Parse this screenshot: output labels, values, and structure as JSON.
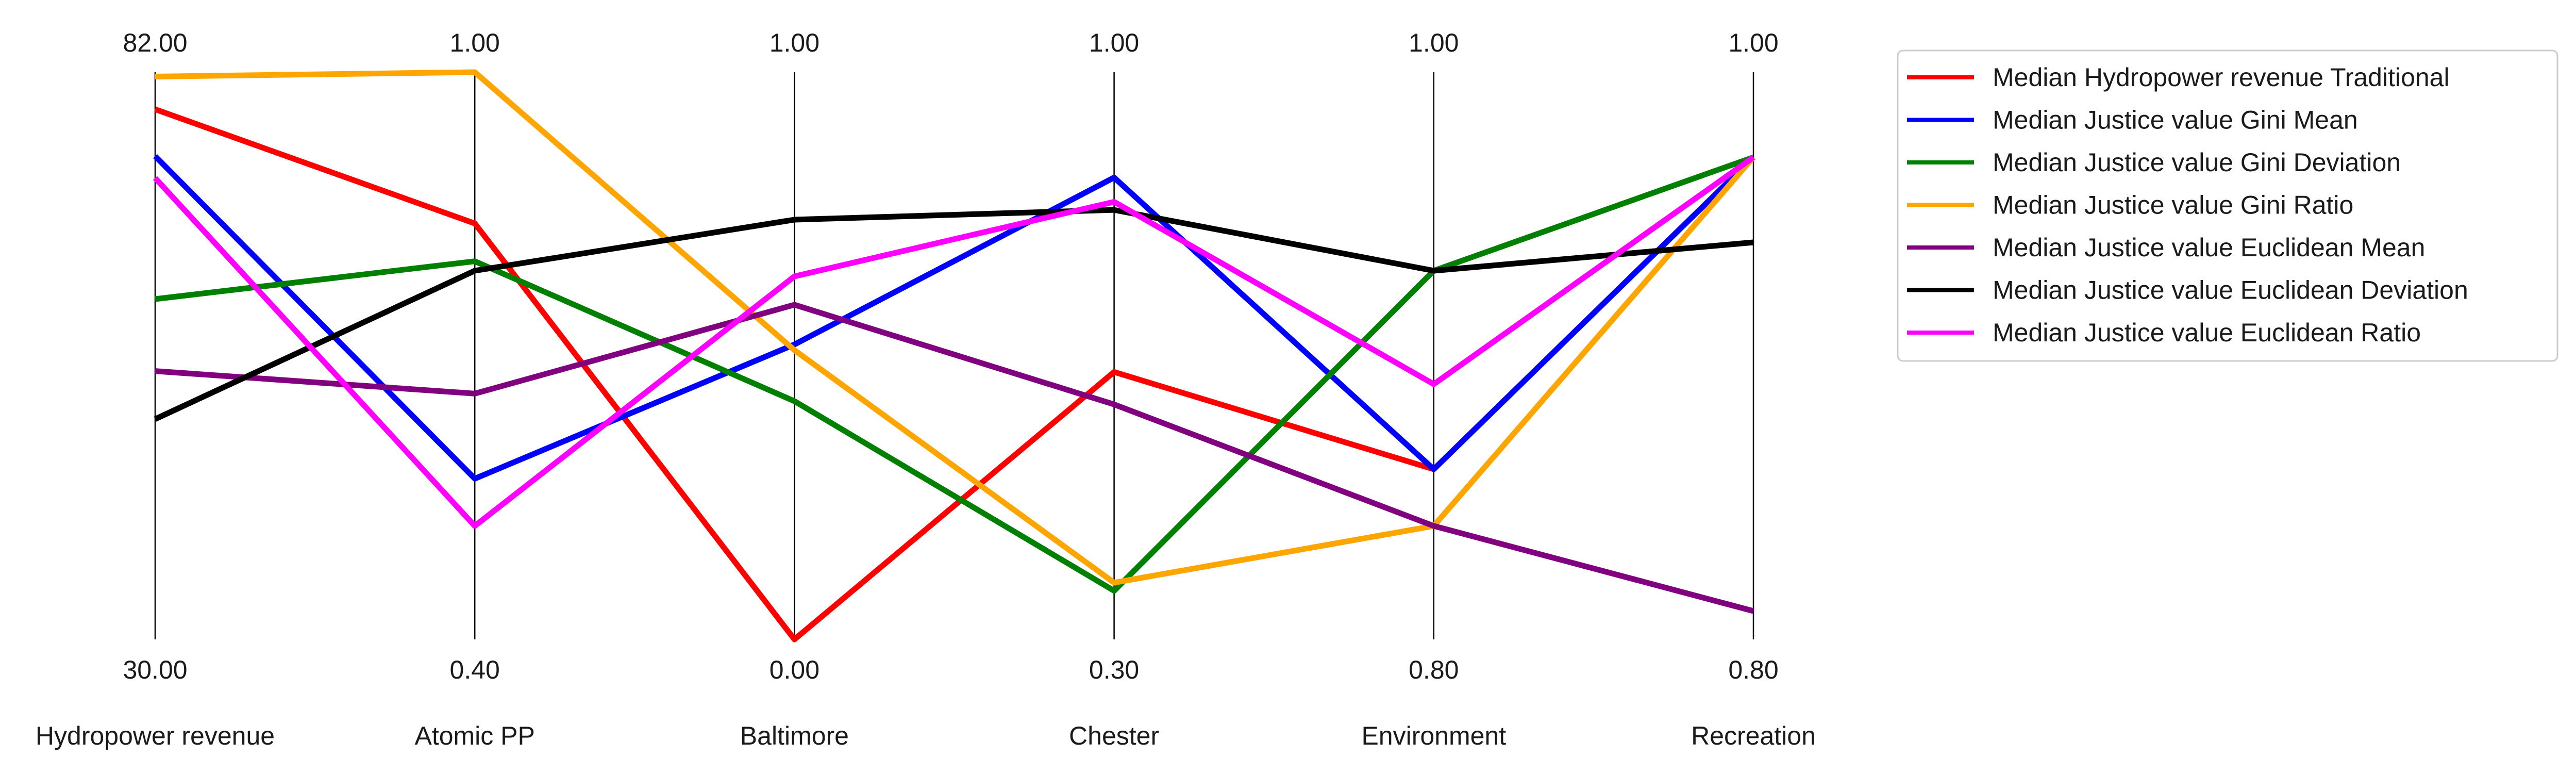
{
  "chart_data": {
    "type": "line",
    "subtype": "parallel-coordinates",
    "axes": [
      {
        "name": "Hydropower revenue",
        "min": 30.0,
        "max": 82.0,
        "min_label": "30.00",
        "max_label": "82.00"
      },
      {
        "name": "Atomic PP",
        "min": 0.4,
        "max": 1.0,
        "min_label": "0.40",
        "max_label": "1.00"
      },
      {
        "name": "Baltimore",
        "min": 0.0,
        "max": 1.0,
        "min_label": "0.00",
        "max_label": "1.00"
      },
      {
        "name": "Chester",
        "min": 0.3,
        "max": 1.0,
        "min_label": "0.30",
        "max_label": "1.00"
      },
      {
        "name": "Environment",
        "min": 0.8,
        "max": 1.0,
        "min_label": "0.80",
        "max_label": "1.00"
      },
      {
        "name": "Recreation",
        "min": 0.8,
        "max": 1.0,
        "min_label": "0.80",
        "max_label": "1.00"
      }
    ],
    "series": [
      {
        "name": "Median Hydropower revenue Traditional",
        "color": "#ff0000",
        "values": [
          78.6,
          0.84,
          0.0,
          0.63,
          0.86,
          0.97
        ]
      },
      {
        "name": "Median Justice value Gini Mean",
        "color": "#0000ff",
        "values": [
          74.3,
          0.57,
          0.52,
          0.87,
          0.86,
          0.97
        ]
      },
      {
        "name": "Median Justice value Gini Deviation",
        "color": "#008000",
        "values": [
          61.2,
          0.8,
          0.42,
          0.36,
          0.93,
          0.97
        ]
      },
      {
        "name": "Median Justice value Gini Ratio",
        "color": "#ffa500",
        "values": [
          81.6,
          1.0,
          0.51,
          0.37,
          0.84,
          0.97
        ]
      },
      {
        "name": "Median Justice value Euclidean Mean",
        "color": "#800080",
        "values": [
          54.6,
          0.66,
          0.59,
          0.59,
          0.84,
          0.81
        ]
      },
      {
        "name": "Median Justice value Euclidean Deviation",
        "color": "#000000",
        "values": [
          50.2,
          0.79,
          0.74,
          0.83,
          0.93,
          0.94
        ]
      },
      {
        "name": "Median Justice value Euclidean Ratio",
        "color": "#ff00ff",
        "values": [
          72.3,
          0.52,
          0.64,
          0.84,
          0.89,
          0.97
        ]
      }
    ],
    "legend_position": "top-right",
    "grid": false
  }
}
